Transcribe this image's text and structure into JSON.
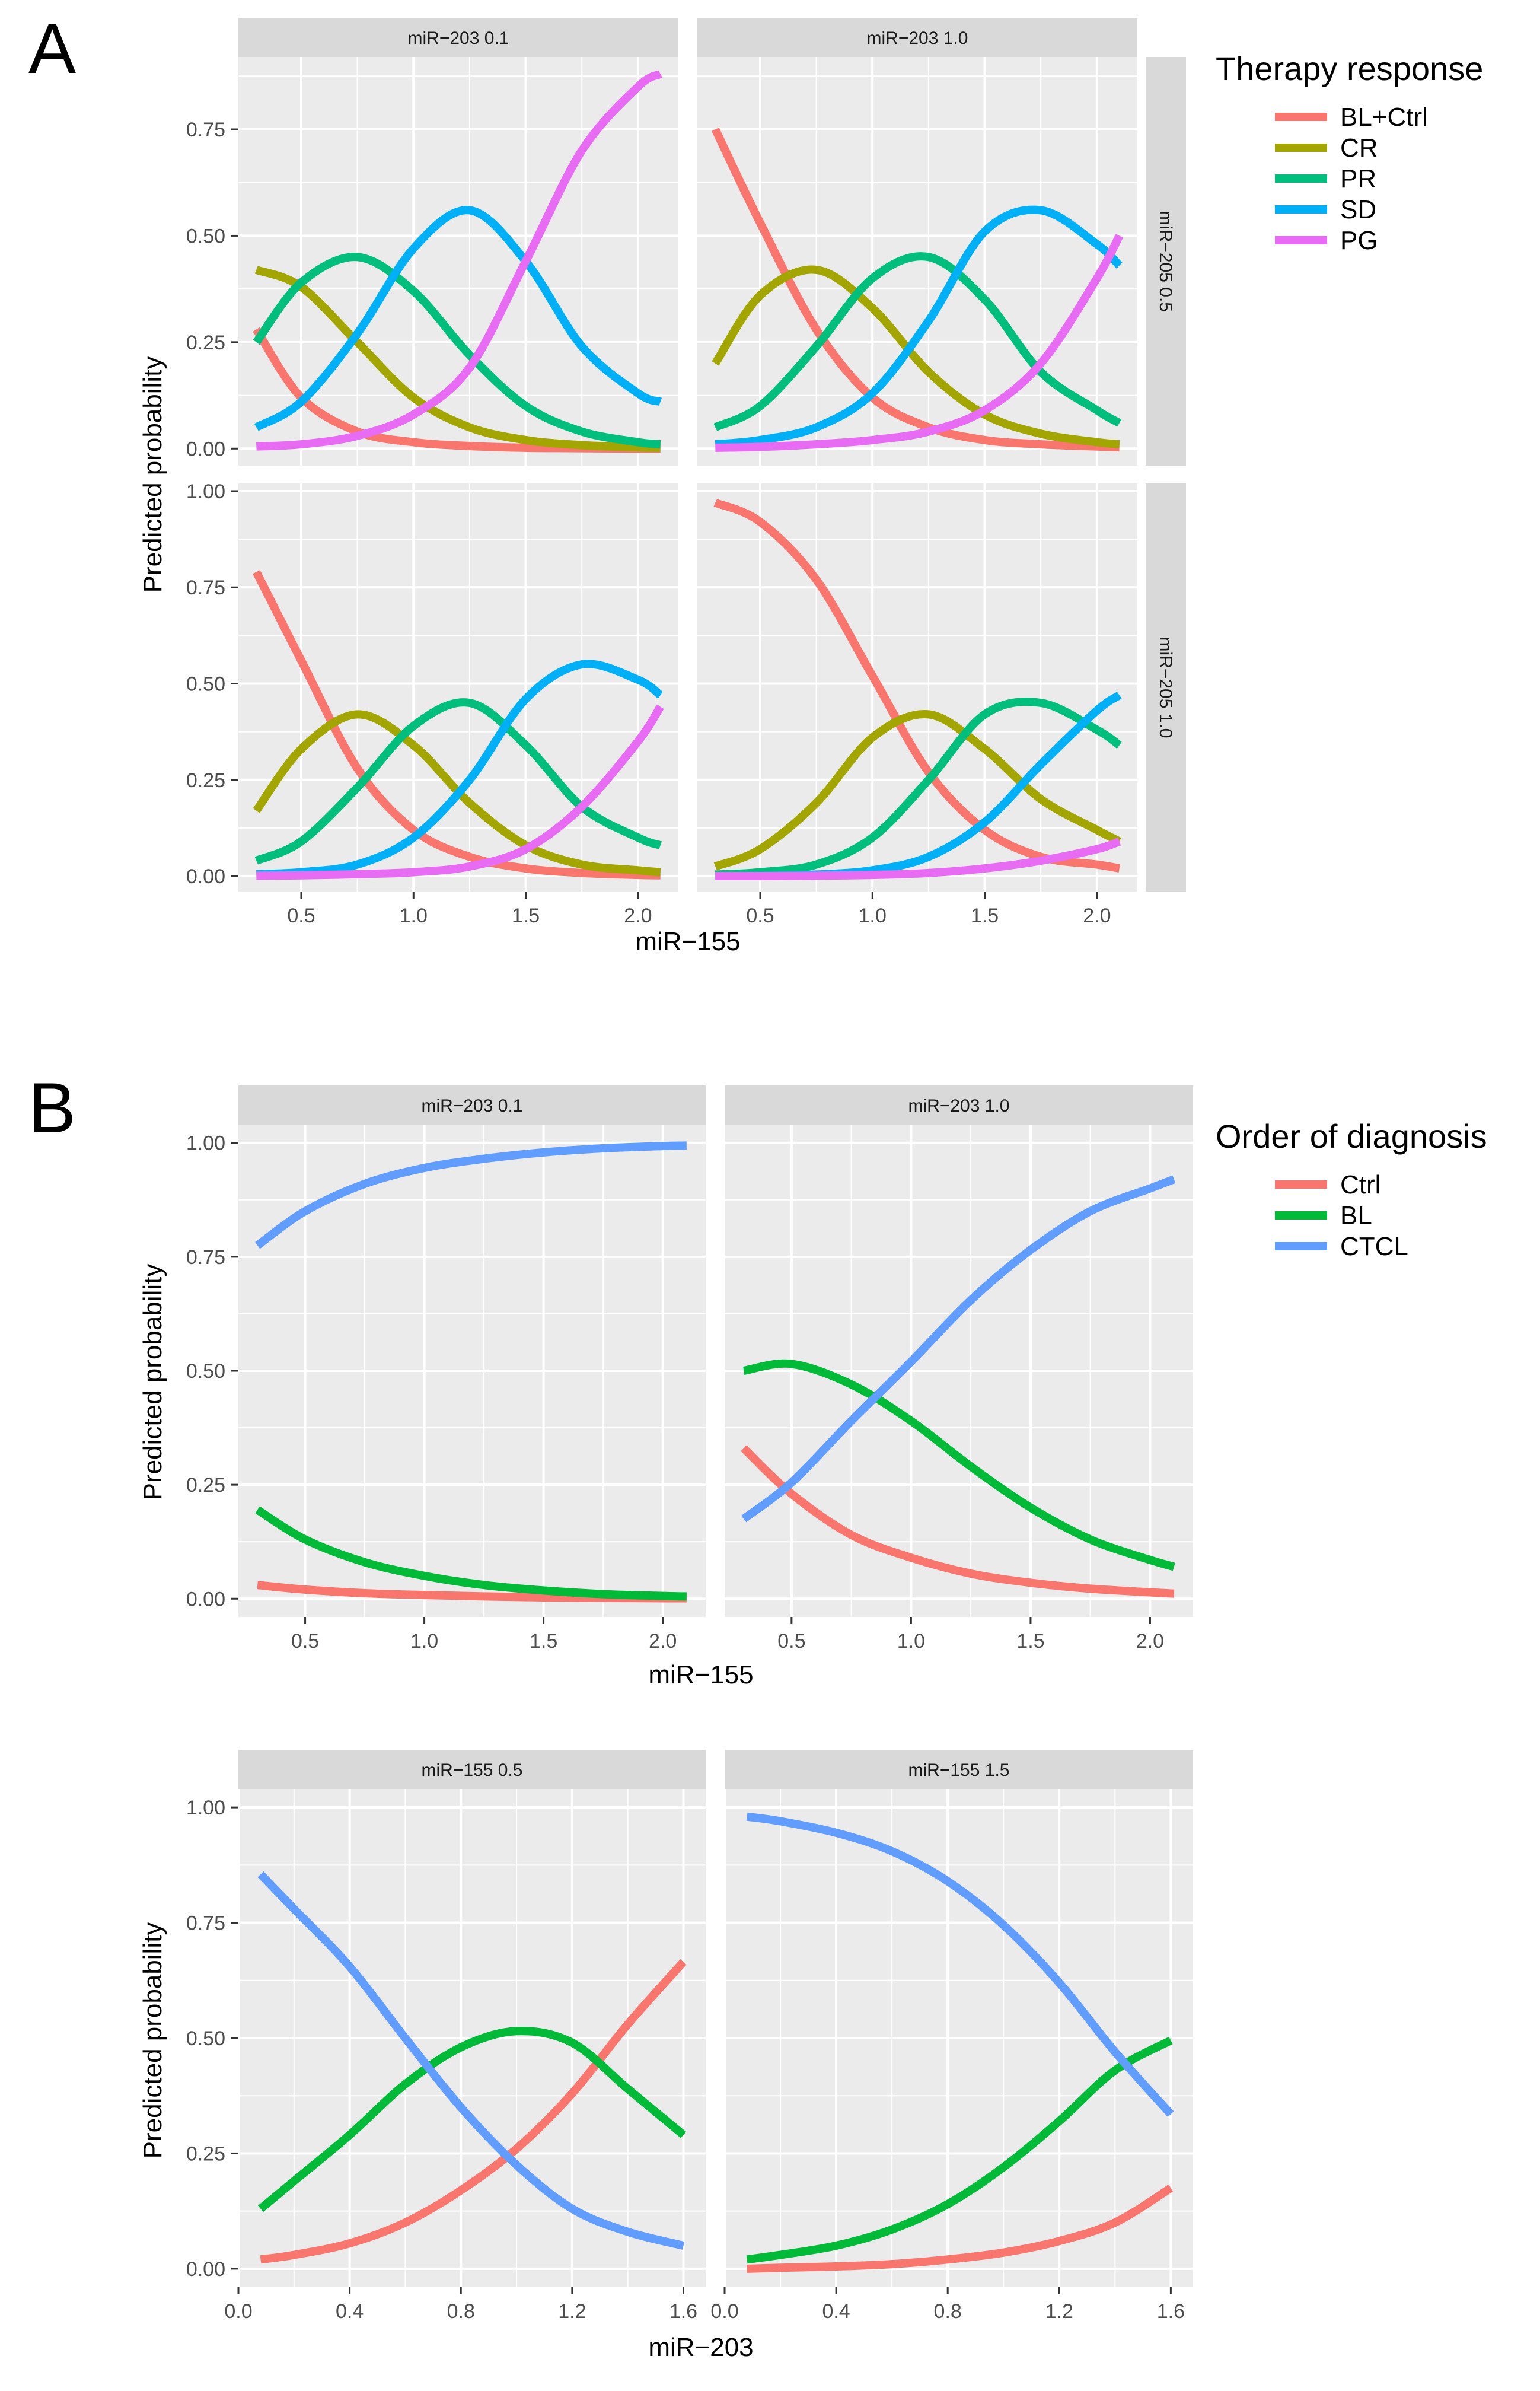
{
  "figure": {
    "panel_a_letter": "A",
    "panel_b_letter": "B"
  },
  "chart_data": [
    {
      "id": "A",
      "type": "line",
      "xlabel": "miR−155",
      "ylabel": "Predicted probability",
      "col_strips": [
        "miR−203 0.1",
        "miR−203 1.0"
      ],
      "row_strips": [
        "miR−205 0.5",
        "miR−205 1.0"
      ],
      "xlim": [
        0.22,
        2.18
      ],
      "x_ticks": [
        0.5,
        1.0,
        1.5,
        2.0
      ],
      "x_tick_labels": [
        "0.5",
        "1.0",
        "1.5",
        "2.0"
      ],
      "y_ticks": [
        0,
        0.25,
        0.5,
        0.75,
        1.0
      ],
      "legend": {
        "title": "Therapy response",
        "entries": [
          "BL+Ctrl",
          "CR",
          "PR",
          "SD",
          "PG"
        ],
        "colors": [
          "#F8766D",
          "#A3A500",
          "#00BF7D",
          "#00B0F6",
          "#E76BF3"
        ],
        "position": "right"
      },
      "rows": [
        {
          "ylim": [
            -0.04,
            0.92
          ],
          "y_tick_values": [
            0,
            0.25,
            0.5,
            0.75
          ],
          "y_tick_labels": [
            "0.00",
            "0.25",
            "0.50",
            "0.75"
          ],
          "panels": [
            {
              "x": [
                0.3,
                0.5,
                0.75,
                1.0,
                1.25,
                1.5,
                1.75,
                2.0,
                2.1
              ],
              "series": [
                {
                  "name": "BL+Ctrl",
                  "values": [
                    0.28,
                    0.12,
                    0.04,
                    0.015,
                    0.006,
                    0.002,
                    0.001,
                    0.0,
                    0.0
                  ]
                },
                {
                  "name": "CR",
                  "values": [
                    0.42,
                    0.38,
                    0.25,
                    0.12,
                    0.05,
                    0.02,
                    0.008,
                    0.003,
                    0.002
                  ]
                },
                {
                  "name": "PR",
                  "values": [
                    0.25,
                    0.39,
                    0.45,
                    0.37,
                    0.22,
                    0.1,
                    0.04,
                    0.015,
                    0.01
                  ]
                },
                {
                  "name": "SD",
                  "values": [
                    0.05,
                    0.11,
                    0.27,
                    0.47,
                    0.56,
                    0.44,
                    0.24,
                    0.13,
                    0.11
                  ]
                },
                {
                  "name": "PG",
                  "values": [
                    0.005,
                    0.01,
                    0.03,
                    0.08,
                    0.19,
                    0.44,
                    0.7,
                    0.85,
                    0.88
                  ]
                }
              ]
            },
            {
              "x": [
                0.3,
                0.5,
                0.75,
                1.0,
                1.25,
                1.5,
                1.75,
                2.0,
                2.1
              ],
              "series": [
                {
                  "name": "BL+Ctrl",
                  "values": [
                    0.75,
                    0.53,
                    0.28,
                    0.12,
                    0.05,
                    0.02,
                    0.01,
                    0.005,
                    0.003
                  ]
                },
                {
                  "name": "CR",
                  "values": [
                    0.2,
                    0.36,
                    0.42,
                    0.33,
                    0.18,
                    0.08,
                    0.035,
                    0.015,
                    0.01
                  ]
                },
                {
                  "name": "PR",
                  "values": [
                    0.05,
                    0.1,
                    0.24,
                    0.4,
                    0.45,
                    0.35,
                    0.18,
                    0.09,
                    0.06
                  ]
                },
                {
                  "name": "SD",
                  "values": [
                    0.01,
                    0.02,
                    0.05,
                    0.13,
                    0.3,
                    0.51,
                    0.56,
                    0.48,
                    0.43
                  ]
                },
                {
                  "name": "PG",
                  "values": [
                    0.002,
                    0.004,
                    0.01,
                    0.02,
                    0.04,
                    0.09,
                    0.2,
                    0.4,
                    0.5
                  ]
                }
              ]
            }
          ]
        },
        {
          "ylim": [
            -0.04,
            1.02
          ],
          "y_tick_values": [
            0,
            0.25,
            0.5,
            0.75,
            1.0
          ],
          "y_tick_labels": [
            "0.00",
            "0.25",
            "0.50",
            "0.75",
            "1.00"
          ],
          "panels": [
            {
              "x": [
                0.3,
                0.5,
                0.75,
                1.0,
                1.25,
                1.5,
                1.75,
                2.0,
                2.1
              ],
              "series": [
                {
                  "name": "BL+Ctrl",
                  "values": [
                    0.79,
                    0.56,
                    0.28,
                    0.12,
                    0.05,
                    0.02,
                    0.008,
                    0.003,
                    0.002
                  ]
                },
                {
                  "name": "CR",
                  "values": [
                    0.17,
                    0.33,
                    0.42,
                    0.34,
                    0.19,
                    0.08,
                    0.03,
                    0.015,
                    0.01
                  ]
                },
                {
                  "name": "PR",
                  "values": [
                    0.04,
                    0.09,
                    0.23,
                    0.39,
                    0.45,
                    0.34,
                    0.18,
                    0.1,
                    0.08
                  ]
                },
                {
                  "name": "SD",
                  "values": [
                    0.005,
                    0.01,
                    0.03,
                    0.1,
                    0.25,
                    0.46,
                    0.55,
                    0.51,
                    0.47
                  ]
                },
                {
                  "name": "PG",
                  "values": [
                    0.001,
                    0.002,
                    0.005,
                    0.01,
                    0.025,
                    0.07,
                    0.18,
                    0.35,
                    0.44
                  ]
                }
              ]
            },
            {
              "x": [
                0.3,
                0.5,
                0.75,
                1.0,
                1.25,
                1.5,
                1.75,
                2.0,
                2.1
              ],
              "series": [
                {
                  "name": "BL+Ctrl",
                  "values": [
                    0.97,
                    0.92,
                    0.77,
                    0.52,
                    0.27,
                    0.12,
                    0.05,
                    0.03,
                    0.02
                  ]
                },
                {
                  "name": "CR",
                  "values": [
                    0.025,
                    0.07,
                    0.19,
                    0.36,
                    0.42,
                    0.33,
                    0.2,
                    0.12,
                    0.09
                  ]
                },
                {
                  "name": "PR",
                  "values": [
                    0.004,
                    0.01,
                    0.03,
                    0.1,
                    0.25,
                    0.42,
                    0.45,
                    0.38,
                    0.34
                  ]
                },
                {
                  "name": "SD",
                  "values": [
                    0.0,
                    0.001,
                    0.004,
                    0.015,
                    0.05,
                    0.14,
                    0.29,
                    0.43,
                    0.47
                  ]
                },
                {
                  "name": "PG",
                  "values": [
                    0.0,
                    0.0,
                    0.001,
                    0.003,
                    0.008,
                    0.02,
                    0.04,
                    0.07,
                    0.09
                  ]
                }
              ]
            }
          ]
        }
      ]
    },
    {
      "id": "B-top",
      "type": "line",
      "xlabel": "miR−155",
      "ylabel": "Predicted probability",
      "col_strips": [
        "miR−203 0.1",
        "miR−203 1.0"
      ],
      "xlim": [
        0.22,
        2.18
      ],
      "ylim": [
        -0.04,
        1.04
      ],
      "x_ticks": [
        0.5,
        1.0,
        1.5,
        2.0
      ],
      "x_tick_labels": [
        "0.5",
        "1.0",
        "1.5",
        "2.0"
      ],
      "y_tick_values": [
        0,
        0.25,
        0.5,
        0.75,
        1.0
      ],
      "y_tick_labels": [
        "0.00",
        "0.25",
        "0.50",
        "0.75",
        "1.00"
      ],
      "legend": {
        "title": "Order of diagnosis",
        "entries": [
          "Ctrl",
          "BL",
          "CTCL"
        ],
        "colors": [
          "#F8766D",
          "#00BA38",
          "#619CFF"
        ],
        "position": "right"
      },
      "panels": [
        {
          "x": [
            0.3,
            0.5,
            0.75,
            1.0,
            1.25,
            1.5,
            1.75,
            2.0,
            2.1
          ],
          "series": [
            {
              "name": "Ctrl",
              "values": [
                0.03,
                0.02,
                0.012,
                0.008,
                0.005,
                0.003,
                0.002,
                0.001,
                0.001
              ]
            },
            {
              "name": "BL",
              "values": [
                0.195,
                0.13,
                0.08,
                0.05,
                0.03,
                0.018,
                0.01,
                0.006,
                0.005
              ]
            },
            {
              "name": "CTCL",
              "values": [
                0.775,
                0.85,
                0.91,
                0.945,
                0.965,
                0.979,
                0.988,
                0.993,
                0.994
              ]
            }
          ]
        },
        {
          "x": [
            0.3,
            0.5,
            0.75,
            1.0,
            1.25,
            1.5,
            1.75,
            2.0,
            2.1
          ],
          "series": [
            {
              "name": "Ctrl",
              "values": [
                0.33,
                0.23,
                0.14,
                0.09,
                0.055,
                0.035,
                0.022,
                0.014,
                0.011
              ]
            },
            {
              "name": "BL",
              "values": [
                0.5,
                0.515,
                0.47,
                0.39,
                0.29,
                0.2,
                0.13,
                0.085,
                0.07
              ]
            },
            {
              "name": "CTCL",
              "values": [
                0.175,
                0.255,
                0.39,
                0.52,
                0.655,
                0.765,
                0.85,
                0.9,
                0.92
              ]
            }
          ]
        }
      ]
    },
    {
      "id": "B-bottom",
      "type": "line",
      "xlabel": "miR−203",
      "ylabel": "Predicted probability",
      "col_strips": [
        "miR−155 0.5",
        "miR−155 1.5"
      ],
      "xlim": [
        0.0,
        1.68
      ],
      "ylim": [
        -0.04,
        1.04
      ],
      "x_ticks": [
        0.0,
        0.4,
        0.8,
        1.2,
        1.6
      ],
      "x_tick_labels": [
        "0.0",
        "0.4",
        "0.8",
        "1.2",
        "1.6"
      ],
      "y_tick_values": [
        0,
        0.25,
        0.5,
        0.75,
        1.0
      ],
      "y_tick_labels": [
        "0.00",
        "0.25",
        "0.50",
        "0.75",
        "1.00"
      ],
      "panels": [
        {
          "x": [
            0.08,
            0.2,
            0.4,
            0.6,
            0.8,
            1.0,
            1.2,
            1.4,
            1.6
          ],
          "series": [
            {
              "name": "Ctrl",
              "values": [
                0.02,
                0.03,
                0.055,
                0.1,
                0.17,
                0.26,
                0.38,
                0.53,
                0.665
              ]
            },
            {
              "name": "BL",
              "values": [
                0.13,
                0.19,
                0.29,
                0.4,
                0.48,
                0.515,
                0.49,
                0.39,
                0.29
              ]
            },
            {
              "name": "CTCL",
              "values": [
                0.855,
                0.78,
                0.655,
                0.5,
                0.35,
                0.225,
                0.13,
                0.08,
                0.05
              ]
            }
          ]
        },
        {
          "x": [
            0.08,
            0.2,
            0.4,
            0.6,
            0.8,
            1.0,
            1.2,
            1.4,
            1.6
          ],
          "series": [
            {
              "name": "Ctrl",
              "values": [
                0.0,
                0.002,
                0.005,
                0.01,
                0.02,
                0.035,
                0.06,
                0.1,
                0.175
              ]
            },
            {
              "name": "BL",
              "values": [
                0.02,
                0.03,
                0.05,
                0.085,
                0.14,
                0.22,
                0.32,
                0.43,
                0.495
              ]
            },
            {
              "name": "CTCL",
              "values": [
                0.98,
                0.97,
                0.945,
                0.905,
                0.84,
                0.745,
                0.62,
                0.47,
                0.335
              ]
            }
          ]
        }
      ]
    }
  ]
}
